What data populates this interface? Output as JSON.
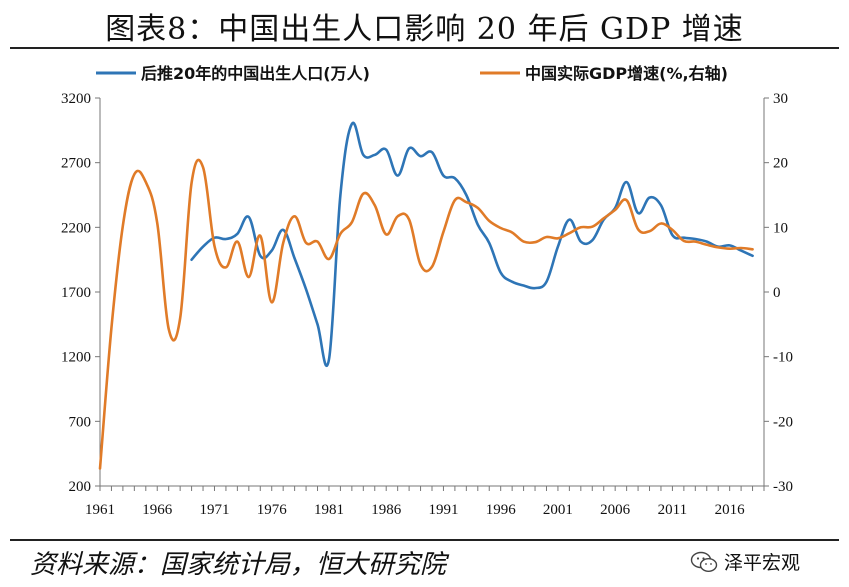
{
  "title": "图表8：中国出生人口影响 20 年后 GDP 增速",
  "source": "资料来源：国家统计局，恒大研究院",
  "brand": {
    "name": "泽平宏观",
    "icon": "wechat-icon"
  },
  "chart_data": {
    "type": "line",
    "legend_position": "top",
    "grid": false,
    "x_ticks": [
      "1961",
      "1966",
      "1971",
      "1976",
      "1981",
      "1986",
      "1991",
      "1996",
      "2001",
      "2006",
      "2011",
      "2016"
    ],
    "y_left": {
      "range": [
        200,
        3200
      ],
      "ticks": [
        "200",
        "700",
        "1200",
        "1700",
        "2200",
        "2700",
        "3200"
      ]
    },
    "y_right": {
      "range": [
        -30,
        30
      ],
      "ticks": [
        "-30",
        "-20",
        "-10",
        "0",
        "10",
        "20",
        "30"
      ]
    },
    "series": [
      {
        "name": "后推20年的中国出生人口(万人)",
        "axis": "left",
        "color": "#2e75b6",
        "x": [
          1969,
          1970,
          1971,
          1972,
          1973,
          1974,
          1975,
          1976,
          1977,
          1978,
          1979,
          1980,
          1981,
          1982,
          1983,
          1984,
          1985,
          1986,
          1987,
          1988,
          1989,
          1990,
          1991,
          1992,
          1993,
          1994,
          1995,
          1996,
          1997,
          1998,
          1999,
          2000,
          2001,
          2002,
          2003,
          2004,
          2005,
          2006,
          2007,
          2008,
          2009,
          2010,
          2011,
          2012,
          2013,
          2014,
          2015,
          2016,
          2017,
          2018
        ],
        "y": [
          1950,
          2050,
          2120,
          2110,
          2150,
          2280,
          1980,
          2020,
          2180,
          1960,
          1720,
          1450,
          1180,
          2450,
          3000,
          2760,
          2760,
          2800,
          2600,
          2810,
          2750,
          2780,
          2600,
          2580,
          2450,
          2220,
          2080,
          1850,
          1780,
          1750,
          1730,
          1780,
          2050,
          2260,
          2090,
          2100,
          2260,
          2350,
          2550,
          2310,
          2430,
          2370,
          2140,
          2120,
          2110,
          2090,
          2050,
          2060,
          2020,
          1980
        ]
      },
      {
        "name": "中国实际GDP增速(%,右轴)",
        "axis": "right",
        "color": "#e07b28",
        "x": [
          1961,
          1962,
          1963,
          1964,
          1965,
          1966,
          1967,
          1968,
          1969,
          1970,
          1971,
          1972,
          1973,
          1974,
          1975,
          1976,
          1977,
          1978,
          1979,
          1980,
          1981,
          1982,
          1983,
          1984,
          1985,
          1986,
          1987,
          1988,
          1989,
          1990,
          1991,
          1992,
          1993,
          1994,
          1995,
          1996,
          1997,
          1998,
          1999,
          2000,
          2001,
          2002,
          2003,
          2004,
          2005,
          2006,
          2007,
          2008,
          2009,
          2010,
          2011,
          2012,
          2013,
          2014,
          2015,
          2016,
          2017,
          2018
        ],
        "y": [
          -27.3,
          -5.6,
          10.3,
          18.2,
          17.0,
          10.7,
          -5.7,
          -4.1,
          16.9,
          19.3,
          7.1,
          3.8,
          7.8,
          2.3,
          8.7,
          -1.6,
          7.6,
          11.7,
          7.6,
          7.8,
          5.1,
          9.0,
          10.8,
          15.2,
          13.4,
          8.9,
          11.7,
          11.2,
          4.2,
          3.9,
          9.3,
          14.2,
          13.9,
          13.0,
          11.0,
          9.9,
          9.2,
          7.8,
          7.7,
          8.5,
          8.3,
          9.1,
          10.0,
          10.1,
          11.4,
          12.7,
          14.2,
          9.7,
          9.4,
          10.6,
          9.6,
          7.9,
          7.8,
          7.3,
          6.9,
          6.7,
          6.8,
          6.6
        ]
      }
    ]
  }
}
